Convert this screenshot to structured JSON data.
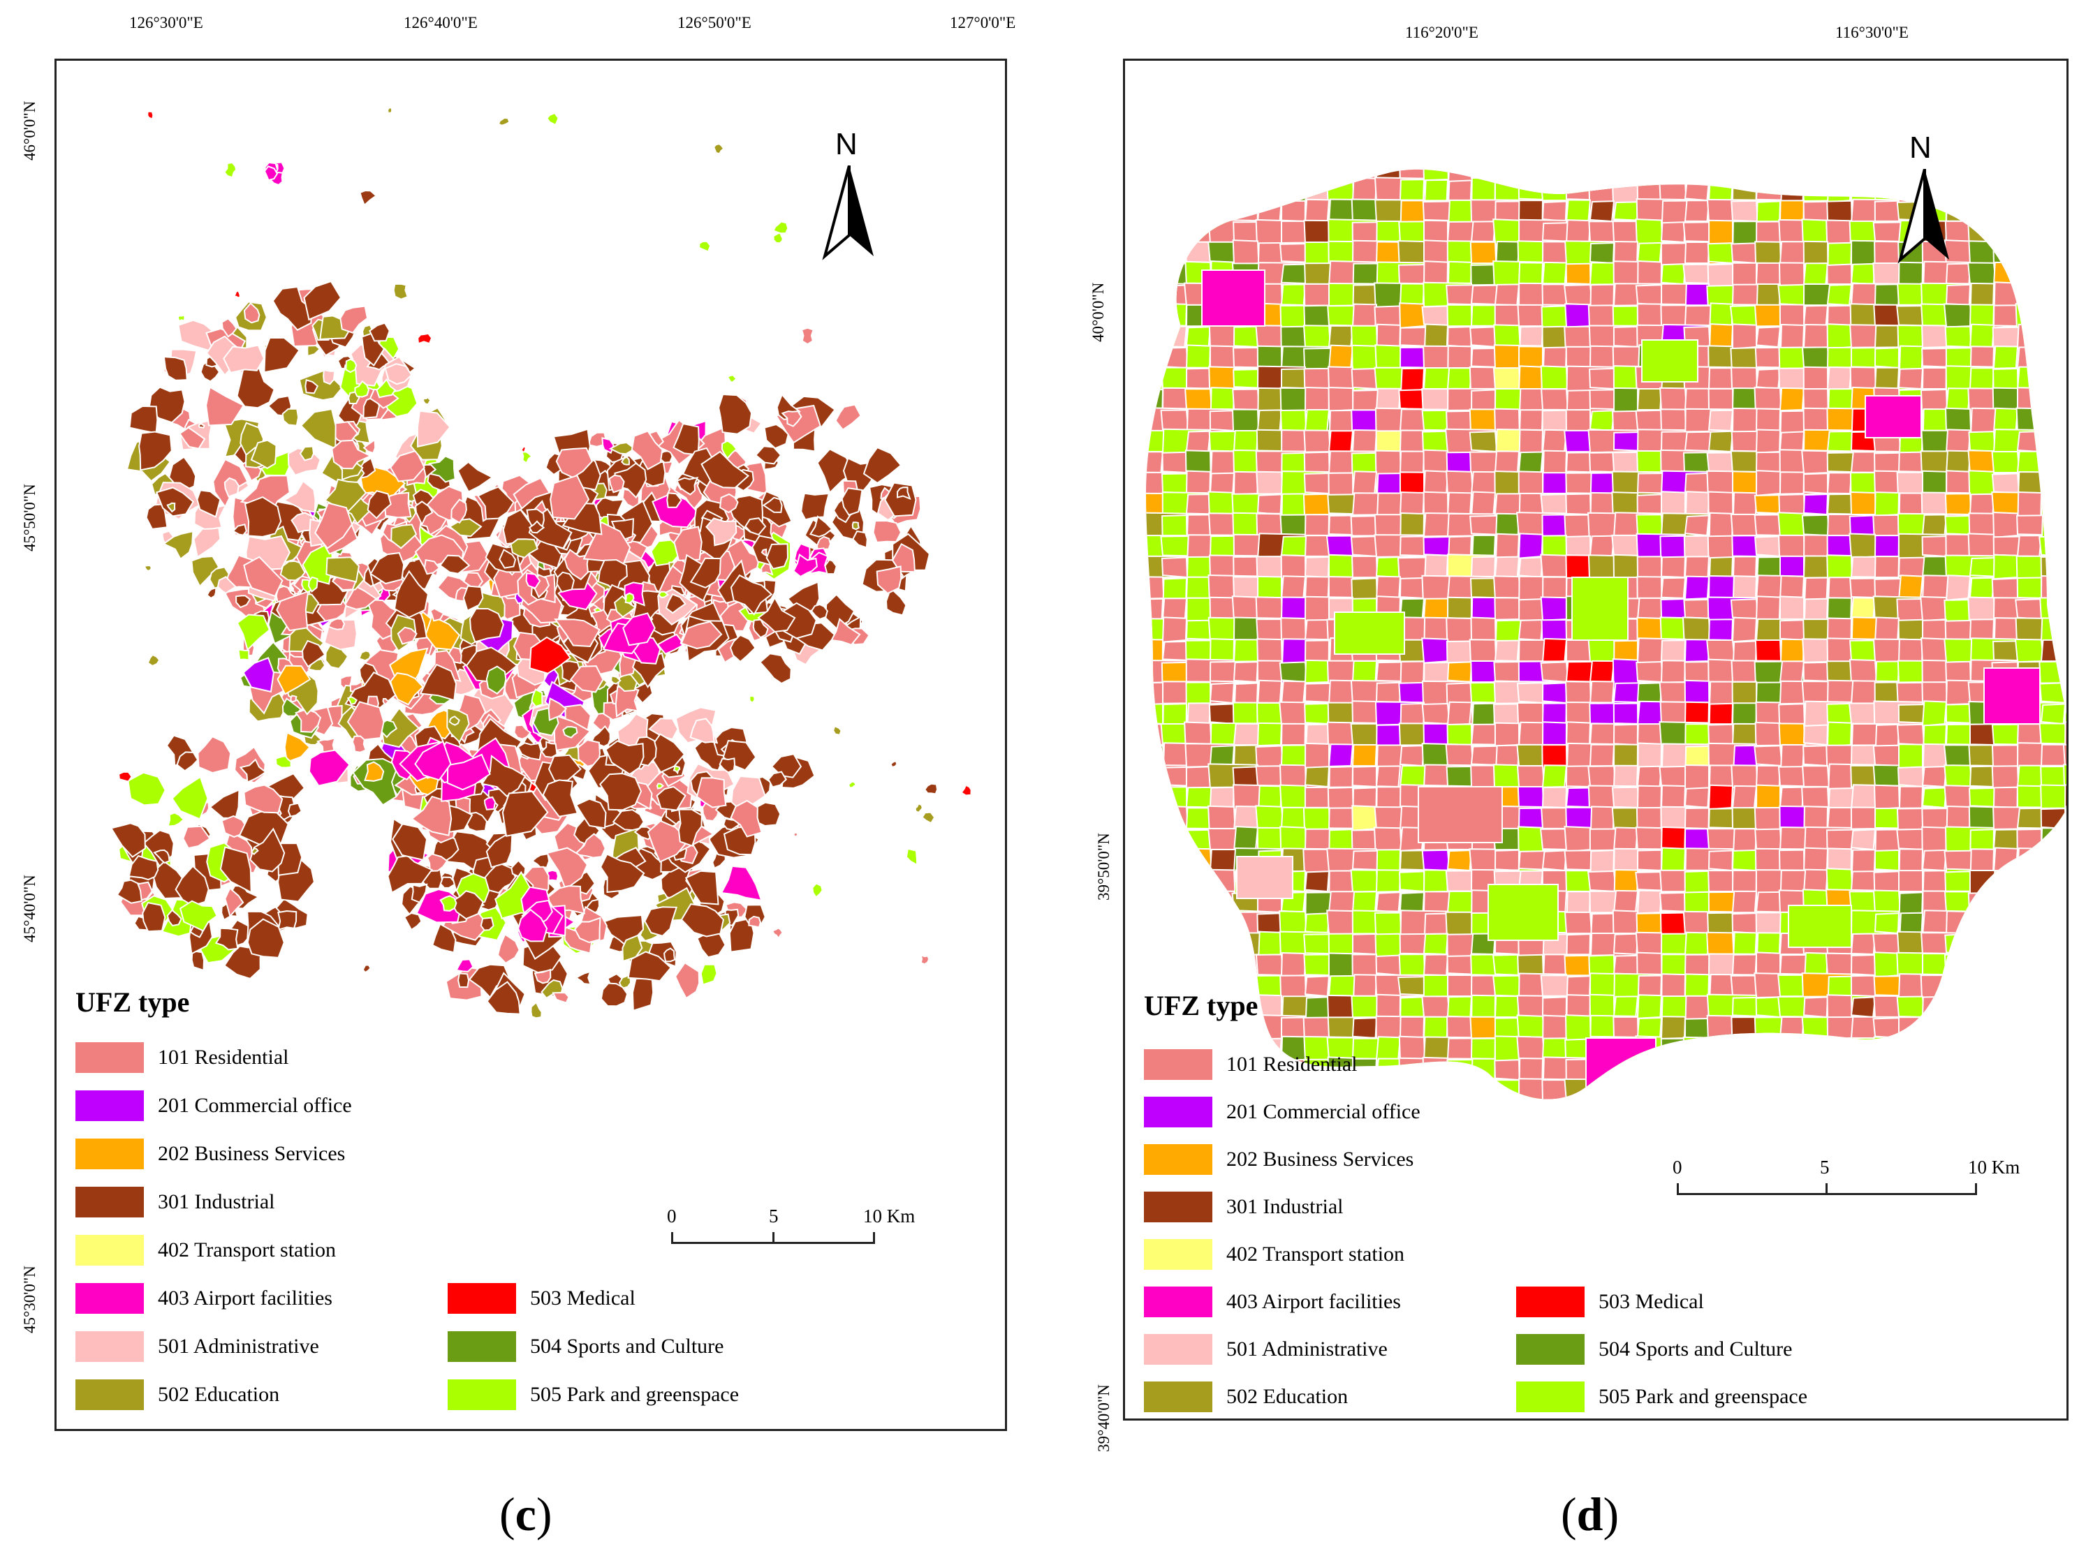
{
  "colors": {
    "101": "#f08080",
    "201": "#bf00ff",
    "202": "#ffaa00",
    "301": "#9b3a12",
    "402": "#ffff73",
    "403": "#ff00c5",
    "501": "#ffbebe",
    "502": "#a69c1e",
    "503": "#ff0000",
    "504": "#6a9c14",
    "505": "#aaff00"
  },
  "legend": {
    "title": "UFZ type",
    "items": [
      {
        "code": "101",
        "label": "101 Residential"
      },
      {
        "code": "201",
        "label": "201 Commercial office"
      },
      {
        "code": "202",
        "label": "202 Business Services"
      },
      {
        "code": "301",
        "label": "301 Industrial"
      },
      {
        "code": "402",
        "label": "402 Transport station"
      },
      {
        "code": "403",
        "label": "403 Airport facilities"
      },
      {
        "code": "501",
        "label": "501 Administrative"
      },
      {
        "code": "502",
        "label": "502 Education"
      },
      {
        "code": "503",
        "label": "503 Medical"
      },
      {
        "code": "504",
        "label": "504 Sports and Culture"
      },
      {
        "code": "505",
        "label": "505 Park and greenspace"
      }
    ]
  },
  "panel_c": {
    "caption_open": "(",
    "caption_letter": "c",
    "caption_close": ")",
    "north": "N",
    "lon_ticks": [
      "126°30'0\"E",
      "126°40'0\"E",
      "126°50'0\"E",
      "127°0'0\"E"
    ],
    "lat_ticks": [
      "46°0'0\"N",
      "45°50'0\"N",
      "45°40'0\"N",
      "45°30'0\"N"
    ],
    "scale": [
      "0",
      "5",
      "10 Km"
    ]
  },
  "panel_d": {
    "caption_open": "(",
    "caption_letter": "d",
    "caption_close": ")",
    "north": "N",
    "lon_ticks": [
      "116°20'0\"E",
      "116°30'0\"E"
    ],
    "lat_ticks": [
      "40°0'0\"N",
      "39°50'0\"N",
      "39°40'0\"N"
    ],
    "scale": [
      "0",
      "5",
      "10 Km"
    ]
  }
}
